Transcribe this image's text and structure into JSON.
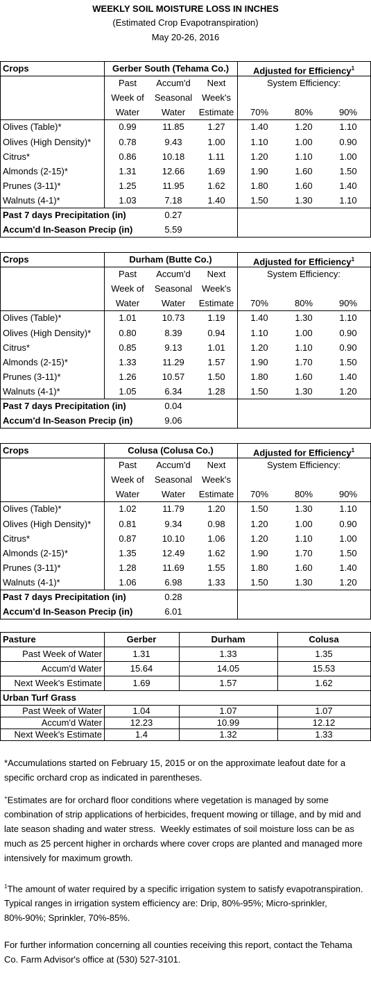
{
  "header": {
    "title": "WEEKLY SOIL MOISTURE LOSS IN INCHES",
    "subtitle": "(Estimated Crop Evapotranspiration)",
    "date": "May 20-26, 2016"
  },
  "sections": [
    {
      "crops": "Crops",
      "location": "Gerber South (Tehama Co.)",
      "adjusted": "Adjusted for Efficiency",
      "adjusted_sup": "1",
      "system": "System Efficiency:",
      "headers": [
        [
          "Past",
          "Accum'd",
          "Next"
        ],
        [
          "Week of",
          "Seasonal",
          "Week's"
        ],
        [
          "Water",
          "Water",
          "Estimate"
        ]
      ],
      "efficiencies": [
        "70%",
        "80%",
        "90%"
      ],
      "rows": [
        [
          "Olives (Table)*",
          "0.99",
          "11.85",
          "1.27",
          "1.40",
          "1.20",
          "1.10"
        ],
        [
          "Olives (High Density)*",
          "0.78",
          "9.43",
          "1.00",
          "1.10",
          "1.00",
          "0.90"
        ],
        [
          "Citrus*",
          "0.86",
          "10.18",
          "1.11",
          "1.20",
          "1.10",
          "1.00"
        ],
        [
          "Almonds (2-15)*",
          "1.31",
          "12.66",
          "1.69",
          "1.90",
          "1.60",
          "1.50"
        ],
        [
          "Prunes (3-11)*",
          "1.25",
          "11.95",
          "1.62",
          "1.80",
          "1.60",
          "1.40"
        ],
        [
          "Walnuts (4-1)*",
          "1.03",
          "7.18",
          "1.40",
          "1.50",
          "1.30",
          "1.10"
        ]
      ],
      "precip": [
        [
          "Past 7 days Precipitation (in)",
          "0.27"
        ],
        [
          "Accum'd In-Season Precip (in)",
          "5.59"
        ]
      ]
    },
    {
      "crops": "Crops",
      "location": "Durham (Butte Co.)",
      "adjusted": "Adjusted for Efficiency",
      "adjusted_sup": "1",
      "system": "System Efficiency:",
      "headers": [
        [
          "Past",
          "Accum'd",
          "Next"
        ],
        [
          "Week of",
          "Seasonal",
          "Week's"
        ],
        [
          "Water",
          "Water",
          "Estimate"
        ]
      ],
      "efficiencies": [
        "70%",
        "80%",
        "90%"
      ],
      "rows": [
        [
          "Olives (Table)*",
          "1.01",
          "10.73",
          "1.19",
          "1.40",
          "1.30",
          "1.10"
        ],
        [
          "Olives (High Density)*",
          "0.80",
          "8.39",
          "0.94",
          "1.10",
          "1.00",
          "0.90"
        ],
        [
          "Citrus*",
          "0.85",
          "9.13",
          "1.01",
          "1.20",
          "1.10",
          "0.90"
        ],
        [
          "Almonds (2-15)*",
          "1.33",
          "11.29",
          "1.57",
          "1.90",
          "1.70",
          "1.50"
        ],
        [
          "Prunes (3-11)*",
          "1.26",
          "10.57",
          "1.50",
          "1.80",
          "1.60",
          "1.40"
        ],
        [
          "Walnuts (4-1)*",
          "1.05",
          "6.34",
          "1.28",
          "1.50",
          "1.30",
          "1.20"
        ]
      ],
      "precip": [
        [
          "Past 7 days Precipitation (in)",
          "0.04"
        ],
        [
          "Accum'd In-Season Precip (in)",
          "9.06"
        ]
      ]
    },
    {
      "crops": "Crops",
      "location": "Colusa (Colusa Co.)",
      "adjusted": "Adjusted for Efficiency",
      "adjusted_sup": "1",
      "system": "System Efficiency:",
      "headers": [
        [
          "Past",
          "Accum'd",
          "Next"
        ],
        [
          "Week of",
          "Seasonal",
          "Week's"
        ],
        [
          "Water",
          "Water",
          "Estimate"
        ]
      ],
      "efficiencies": [
        "70%",
        "80%",
        "90%"
      ],
      "rows": [
        [
          "Olives (Table)*",
          "1.02",
          "11.79",
          "1.20",
          "1.50",
          "1.30",
          "1.10"
        ],
        [
          "Olives (High Density)*",
          "0.81",
          "9.34",
          "0.98",
          "1.20",
          "1.00",
          "0.90"
        ],
        [
          "Citrus*",
          "0.87",
          "10.10",
          "1.06",
          "1.20",
          "1.10",
          "1.00"
        ],
        [
          "Almonds (2-15)*",
          "1.35",
          "12.49",
          "1.62",
          "1.90",
          "1.70",
          "1.50"
        ],
        [
          "Prunes (3-11)*",
          "1.28",
          "11.69",
          "1.55",
          "1.80",
          "1.60",
          "1.40"
        ],
        [
          "Walnuts (4-1)*",
          "1.06",
          "6.98",
          "1.33",
          "1.50",
          "1.30",
          "1.20"
        ]
      ],
      "precip": [
        [
          "Past 7 days Precipitation (in)",
          "0.28"
        ],
        [
          "Accum'd In-Season Precip (in)",
          "6.01"
        ]
      ]
    }
  ],
  "pasture": {
    "header": [
      "Pasture",
      "Gerber",
      "Durham",
      "Colusa"
    ],
    "rows": [
      [
        "Past Week of Water",
        "1.31",
        "1.33",
        "1.35"
      ],
      [
        "Accum'd Water",
        "15.64",
        "14.05",
        "15.53"
      ],
      [
        "Next Week's Estimate",
        "1.69",
        "1.57",
        "1.62"
      ]
    ],
    "turf_title": "Urban Turf Grass",
    "turf_rows": [
      [
        "Past Week of Water",
        "1.04",
        "1.07",
        "1.07"
      ],
      [
        "Accum'd Water",
        "12.23",
        "10.99",
        "12.12"
      ],
      [
        "Next Week's Estimate",
        "1.4",
        "1.32",
        "1.33"
      ]
    ]
  },
  "notes": [
    {
      "text": "*Accumulations started on February 15, 2015 or on the approximate leafout date for a specific orchard crop as indicated in parentheses."
    },
    {
      "sup": "+",
      "text": "Estimates are for orchard floor conditions where vegetation is managed by some combination of strip applications of herbicides, frequent mowing or tillage, and by mid and late season shading and water stress.  Weekly estimates of soil moisture loss can be as much as 25 percent higher in orchards where cover crops are planted and managed more intensively for maximum growth."
    },
    {
      "sup": "1",
      "text": "The amount of water required by a specific irrigation system to satisfy evapotranspiration. Typical ranges in irrigation system efficiency are: Drip, 80%-95%; Micro-sprinkler, 80%-90%; Sprinkler, 70%-85%."
    },
    {
      "text": "For further information concerning all counties receiving this report, contact the Tehama Co. Farm Advisor's office at (530) 527-3101."
    }
  ]
}
